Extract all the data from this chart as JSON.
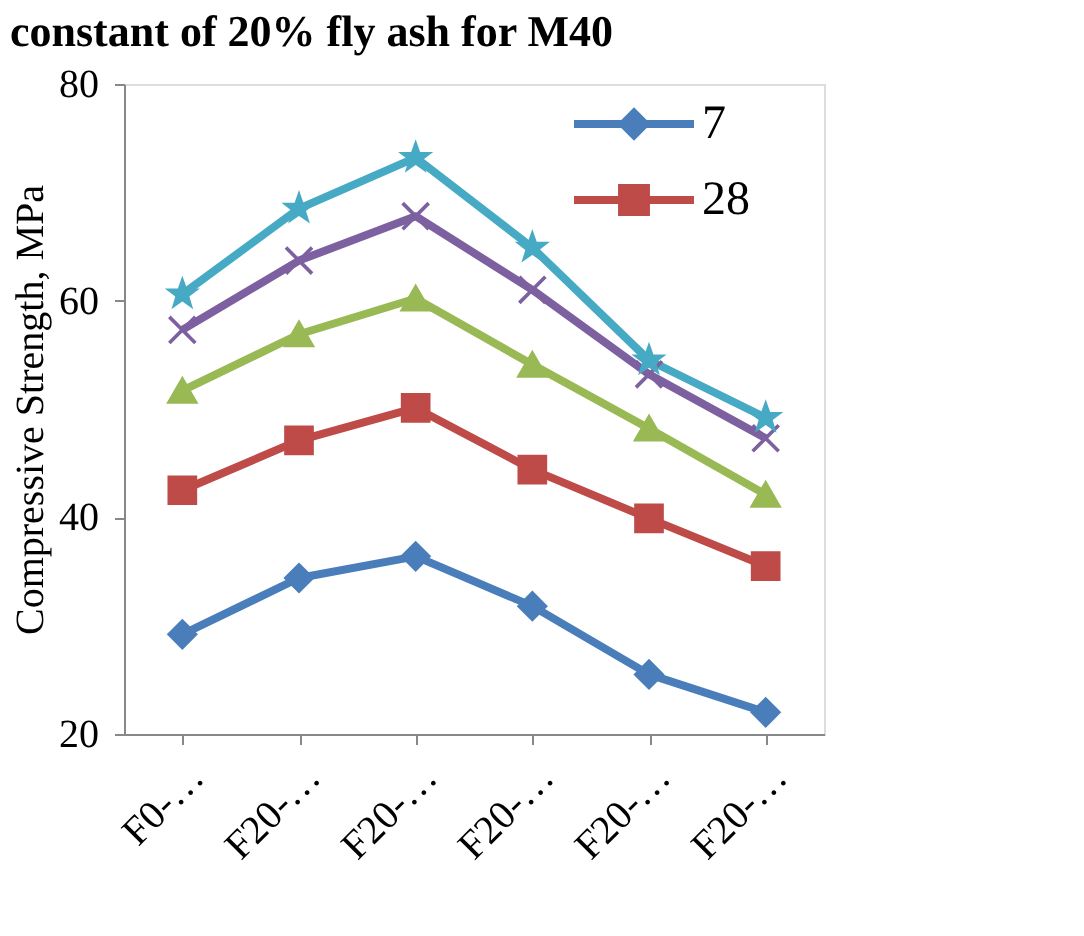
{
  "chart_data": {
    "type": "line",
    "title": "constant of 20% fly ash for M40",
    "ylabel": "Compressive Strength, MPa",
    "categories": [
      "F0-…",
      "F20-…",
      "F20-…",
      "F20-…",
      "F20-…",
      "F20-…"
    ],
    "ylim": [
      20,
      80
    ],
    "yticks": [
      20,
      40,
      60,
      80
    ],
    "grid": false,
    "legend": "top right",
    "series": [
      {
        "name": "7",
        "color": "#4a7ebb",
        "marker": "diamond",
        "values": [
          29.2,
          34.4,
          36.4,
          31.8,
          25.5,
          22.0
        ]
      },
      {
        "name": "28",
        "color": "#be4b48",
        "marker": "square",
        "values": [
          42.5,
          47.1,
          50.1,
          44.4,
          39.9,
          35.5
        ]
      },
      {
        "color": "#98b954",
        "marker": "triangle",
        "values": [
          51.7,
          56.9,
          60.2,
          54.1,
          48.2,
          42.1
        ]
      },
      {
        "color": "#7d60a0",
        "marker": "cross",
        "values": [
          57.3,
          63.7,
          67.8,
          61.0,
          53.2,
          47.3
        ]
      },
      {
        "color": "#46aac5",
        "marker": "star",
        "values": [
          60.6,
          68.5,
          73.2,
          64.9,
          54.5,
          49.2
        ]
      }
    ]
  }
}
